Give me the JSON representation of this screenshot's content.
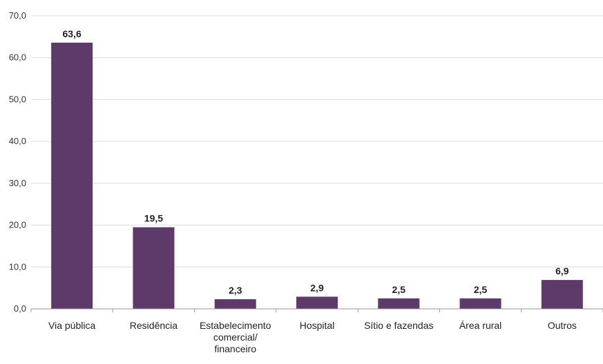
{
  "chart_data": {
    "type": "bar",
    "categories": [
      [
        "Via pública"
      ],
      [
        "Residência"
      ],
      [
        "Estabelecimento",
        "comercial/",
        "financeiro"
      ],
      [
        "Hospital"
      ],
      [
        "Sítio e fazendas"
      ],
      [
        "Área rural"
      ],
      [
        "Outros"
      ]
    ],
    "values": [
      63.6,
      19.5,
      2.3,
      2.9,
      2.5,
      2.5,
      6.9
    ],
    "value_labels": [
      "63,6",
      "19,5",
      "2,3",
      "2,9",
      "2,5",
      "2,5",
      "6,9"
    ],
    "y_ticks": [
      0,
      10,
      20,
      30,
      40,
      50,
      60,
      70
    ],
    "y_tick_labels": [
      "0,0",
      "10,0",
      "20,0",
      "30,0",
      "40,0",
      "50,0",
      "60,0",
      "70,0"
    ],
    "ylim": [
      0,
      70
    ],
    "grid": true,
    "bar_color": "#5e3a6a",
    "title": "",
    "xlabel": "",
    "ylabel": ""
  }
}
